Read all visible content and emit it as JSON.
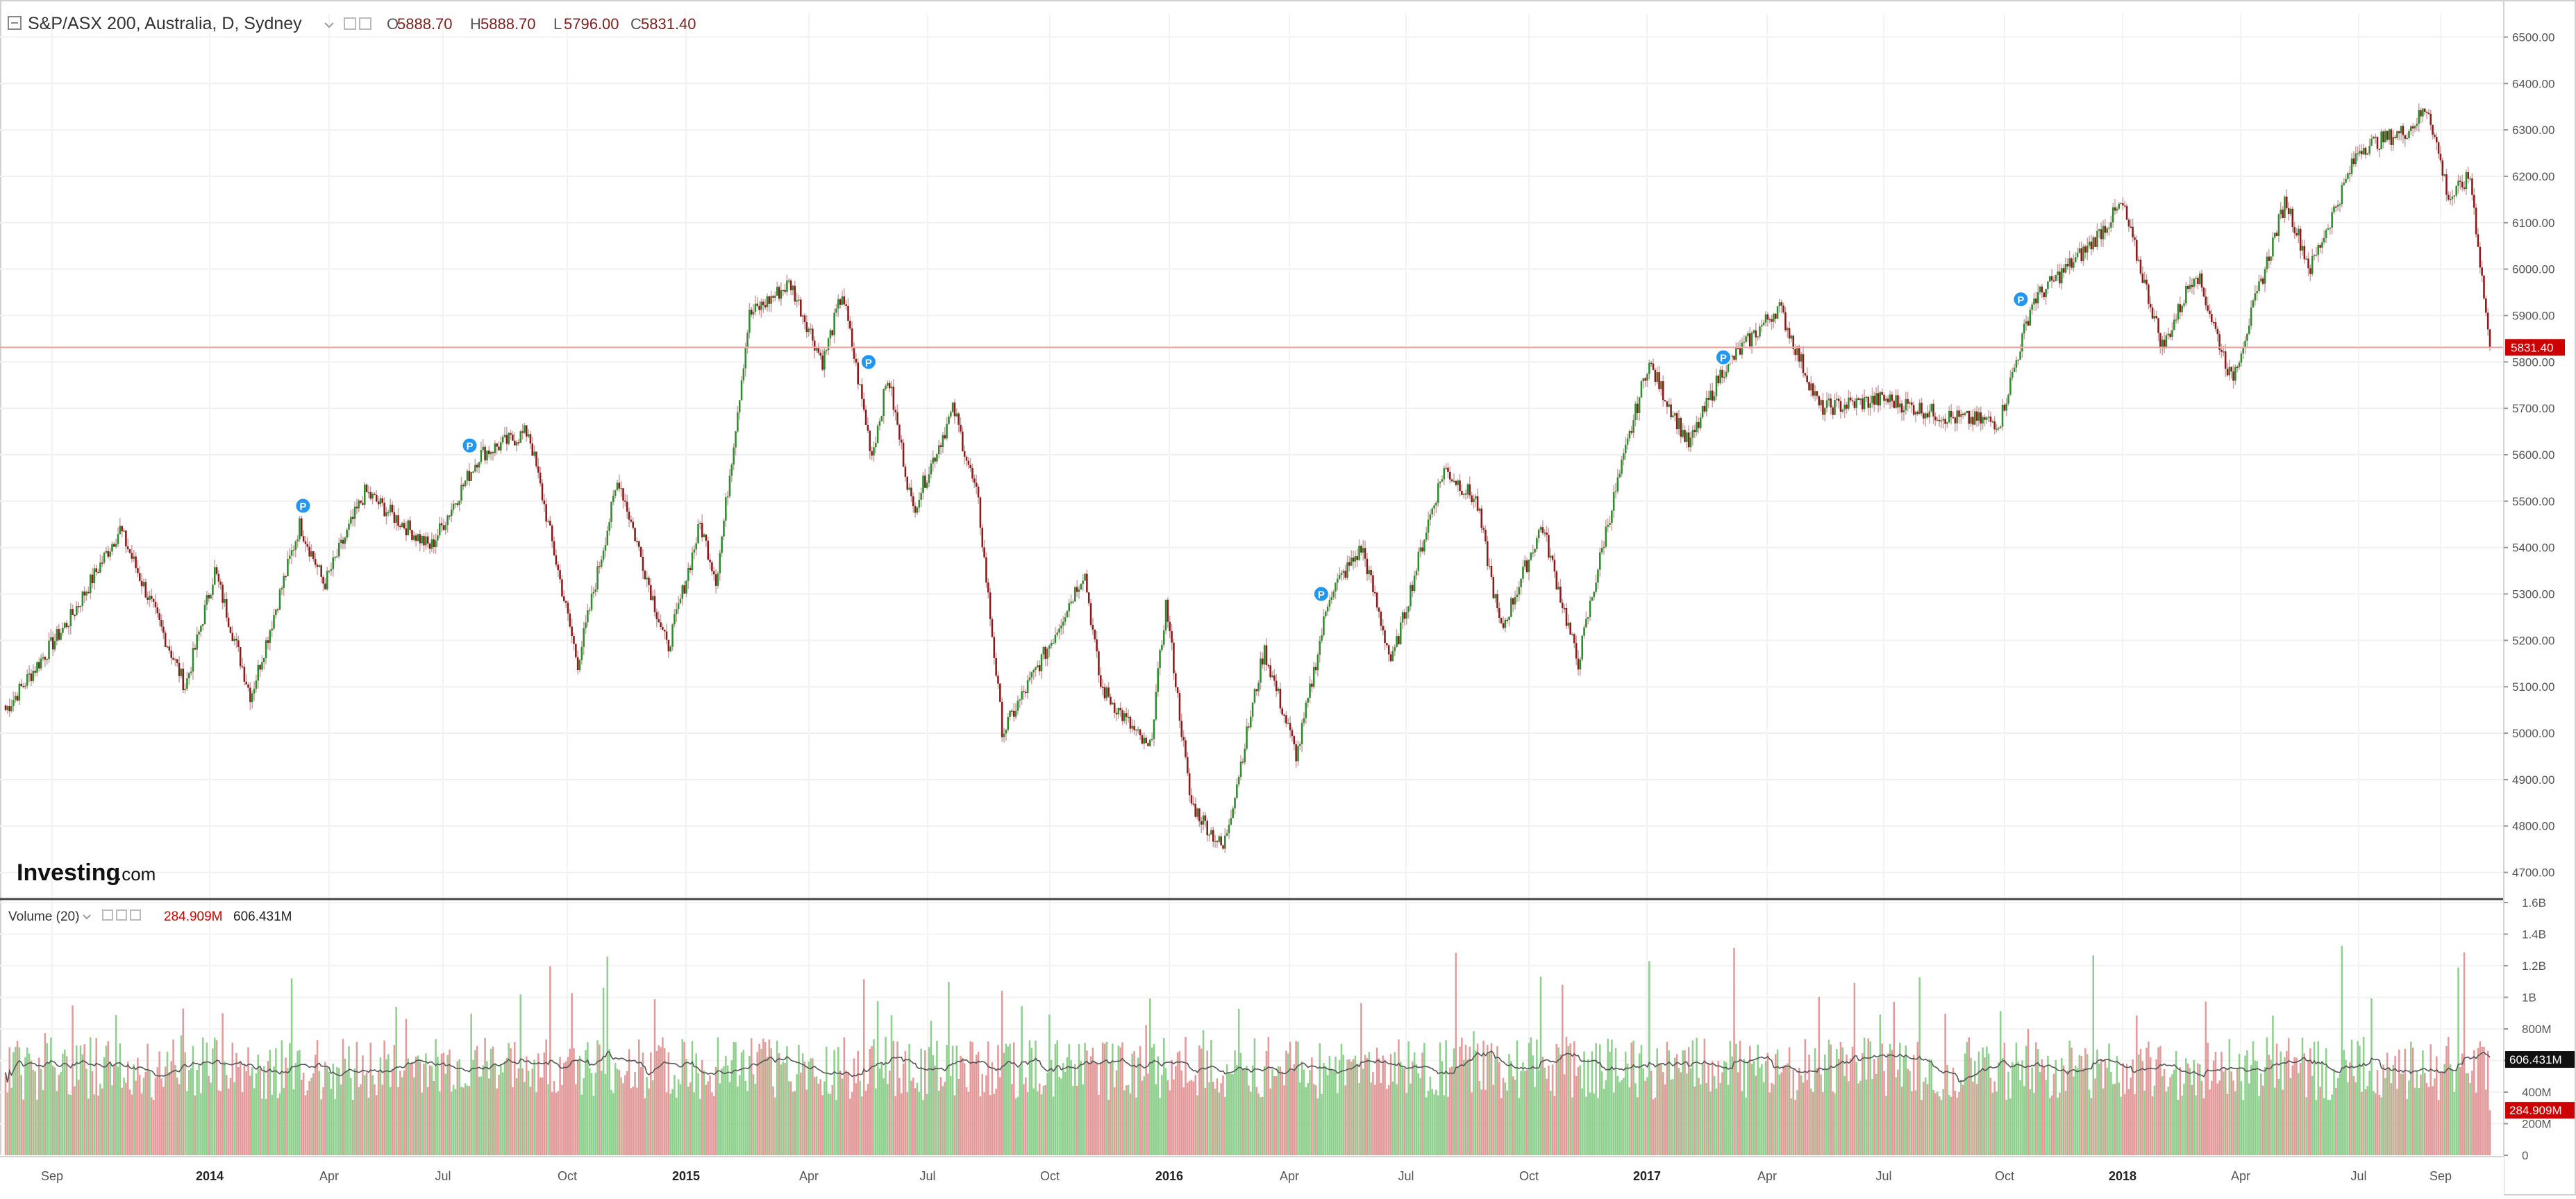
{
  "header": {
    "symbol": "S&P/ASX 200, Australia, D, Sydney",
    "o_label": "O",
    "o_value": "5888.70",
    "h_label": "H",
    "h_value": "5888.70",
    "l_label": "L",
    "l_value": "5796.00",
    "c_label": "C",
    "c_value": "5831.40"
  },
  "volume_header": {
    "label": "Volume (20)",
    "value1": "284.909M",
    "value2": "606.431M"
  },
  "watermark": {
    "brand": "Investing",
    "suffix": ".com"
  },
  "last_price_tag": "5831.40",
  "volume_tags": {
    "ma": "606.431M",
    "vol": "284.909M"
  },
  "colors": {
    "up": "#2e8b2e",
    "down": "#8b1a1a",
    "wick_up": "#c9a0a0",
    "wick_down": "#c9a0a0",
    "vol_up": "#8fd08f",
    "vol_down": "#e39a9a",
    "last_line": "#f2a0a0",
    "tag_red": "#cc0000",
    "event_marker": "#2196f3",
    "axis_text": "#555555",
    "ohlc_value": "#7a1e1e"
  },
  "chart_data": [
    {
      "type": "candlestick",
      "title": "S&P/ASX 200, Australia, D, Sydney",
      "ylim": [
        4650,
        6550
      ],
      "y_ticks": [
        "6500.00",
        "6400.00",
        "6300.00",
        "6200.00",
        "6100.00",
        "6000.00",
        "5900.00",
        "5800.00",
        "5700.00",
        "5600.00",
        "5500.00",
        "5400.00",
        "5300.00",
        "5200.00",
        "5100.00",
        "5000.00",
        "4900.00",
        "4800.00",
        "4700.00"
      ],
      "x_ticks": [
        "Sep",
        "2014",
        "Apr",
        "Jul",
        "Oct",
        "2015",
        "Apr",
        "Jul",
        "Oct",
        "2016",
        "Apr",
        "Jul",
        "Oct",
        "2017",
        "Apr",
        "Jul",
        "Oct",
        "2018",
        "Apr",
        "Jul",
        "Sep"
      ],
      "key_points": [
        {
          "x": 0,
          "y": 5050
        },
        {
          "x": 40,
          "y": 5250
        },
        {
          "x": 70,
          "y": 5440
        },
        {
          "x": 110,
          "y": 5100
        },
        {
          "x": 128,
          "y": 5350
        },
        {
          "x": 150,
          "y": 5080
        },
        {
          "x": 180,
          "y": 5450
        },
        {
          "x": 195,
          "y": 5320
        },
        {
          "x": 220,
          "y": 5520
        },
        {
          "x": 260,
          "y": 5400
        },
        {
          "x": 290,
          "y": 5600
        },
        {
          "x": 320,
          "y": 5650
        },
        {
          "x": 350,
          "y": 5150
        },
        {
          "x": 375,
          "y": 5550
        },
        {
          "x": 405,
          "y": 5180
        },
        {
          "x": 425,
          "y": 5450
        },
        {
          "x": 435,
          "y": 5330
        },
        {
          "x": 455,
          "y": 5900
        },
        {
          "x": 480,
          "y": 5970
        },
        {
          "x": 500,
          "y": 5800
        },
        {
          "x": 512,
          "y": 5950
        },
        {
          "x": 530,
          "y": 5600
        },
        {
          "x": 540,
          "y": 5770
        },
        {
          "x": 555,
          "y": 5480
        },
        {
          "x": 580,
          "y": 5700
        },
        {
          "x": 595,
          "y": 5500
        },
        {
          "x": 610,
          "y": 5000
        },
        {
          "x": 640,
          "y": 5200
        },
        {
          "x": 660,
          "y": 5350
        },
        {
          "x": 670,
          "y": 5100
        },
        {
          "x": 700,
          "y": 4960
        },
        {
          "x": 710,
          "y": 5280
        },
        {
          "x": 725,
          "y": 4850
        },
        {
          "x": 745,
          "y": 4750
        },
        {
          "x": 770,
          "y": 5180
        },
        {
          "x": 790,
          "y": 4950
        },
        {
          "x": 810,
          "y": 5300
        },
        {
          "x": 830,
          "y": 5400
        },
        {
          "x": 848,
          "y": 5150
        },
        {
          "x": 870,
          "y": 5450
        },
        {
          "x": 880,
          "y": 5570
        },
        {
          "x": 900,
          "y": 5500
        },
        {
          "x": 915,
          "y": 5220
        },
        {
          "x": 940,
          "y": 5450
        },
        {
          "x": 962,
          "y": 5150
        },
        {
          "x": 980,
          "y": 5450
        },
        {
          "x": 1005,
          "y": 5800
        },
        {
          "x": 1030,
          "y": 5620
        },
        {
          "x": 1050,
          "y": 5780
        },
        {
          "x": 1085,
          "y": 5920
        },
        {
          "x": 1110,
          "y": 5700
        },
        {
          "x": 1150,
          "y": 5720
        },
        {
          "x": 1190,
          "y": 5680
        },
        {
          "x": 1220,
          "y": 5670
        },
        {
          "x": 1240,
          "y": 5930
        },
        {
          "x": 1275,
          "y": 6050
        },
        {
          "x": 1295,
          "y": 6140
        },
        {
          "x": 1320,
          "y": 5830
        },
        {
          "x": 1340,
          "y": 6000
        },
        {
          "x": 1362,
          "y": 5760
        },
        {
          "x": 1395,
          "y": 6150
        },
        {
          "x": 1410,
          "y": 6000
        },
        {
          "x": 1440,
          "y": 6260
        },
        {
          "x": 1470,
          "y": 6300
        },
        {
          "x": 1482,
          "y": 6350
        },
        {
          "x": 1495,
          "y": 6150
        },
        {
          "x": 1508,
          "y": 6200
        },
        {
          "x": 1520,
          "y": 5831
        }
      ],
      "x_domain": [
        0,
        1520
      ],
      "event_markers": [
        {
          "x": 182,
          "y": 5490,
          "label": "P"
        },
        {
          "x": 284,
          "y": 5620,
          "label": "P"
        },
        {
          "x": 528,
          "y": 5800,
          "label": "P"
        },
        {
          "x": 805,
          "y": 5300,
          "label": "P"
        },
        {
          "x": 1051,
          "y": 5810,
          "label": "P"
        },
        {
          "x": 1233,
          "y": 5935,
          "label": "P"
        }
      ],
      "last_price": 5831.4
    },
    {
      "type": "bar",
      "title": "Volume (20)",
      "ylim": [
        0,
        1600000000
      ],
      "y_ticks": [
        "1.6B",
        "1.4B",
        "1.2B",
        "1B",
        "800M",
        "600M",
        "400M",
        "200M",
        "0"
      ],
      "ma_value_m": 606.431,
      "last_volume_m": 284.909
    }
  ]
}
